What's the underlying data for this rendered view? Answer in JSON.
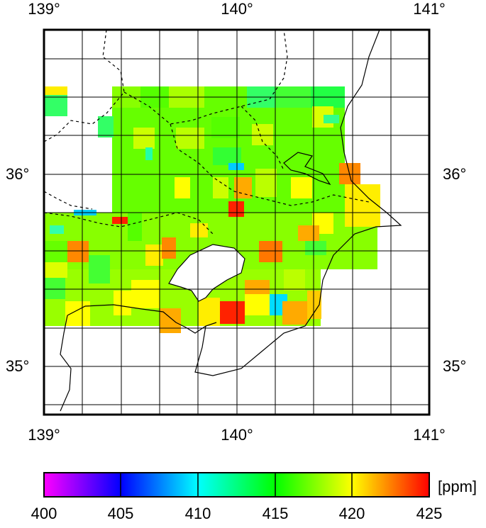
{
  "map": {
    "lon_labels": [
      "139°",
      "140°",
      "141°"
    ],
    "lat_labels": [
      "36°",
      "35°"
    ],
    "lon_range": [
      139,
      141
    ],
    "lat_range": [
      34.8,
      36.8
    ],
    "grid": true,
    "note_visible_text_only": true
  },
  "colorbar": {
    "min": 400,
    "max": 425,
    "ticks": [
      "400",
      "405",
      "410",
      "415",
      "420",
      "425"
    ],
    "unit": "[ppm]",
    "colors": [
      "#ff00ff",
      "#0000ff",
      "#00ffff",
      "#00ff00",
      "#ffff00",
      "#ff0000"
    ]
  },
  "chart_data": {
    "type": "heatmap",
    "cells_ppm_sample": [
      {
        "lon": 139.1,
        "lat": 36.45,
        "value": 414
      },
      {
        "lon": 139.05,
        "lat": 36.55,
        "value": 420
      },
      {
        "lon": 139.35,
        "lat": 36.55,
        "value": 417
      },
      {
        "lon": 139.6,
        "lat": 36.6,
        "value": 416
      },
      {
        "lon": 139.95,
        "lat": 36.6,
        "value": 414
      },
      {
        "lon": 140.3,
        "lat": 36.6,
        "value": 416
      },
      {
        "lon": 140.4,
        "lat": 36.5,
        "value": 414
      },
      {
        "lon": 139.9,
        "lat": 36.05,
        "value": 411
      },
      {
        "lon": 140.0,
        "lat": 35.9,
        "value": 421
      },
      {
        "lon": 139.95,
        "lat": 35.8,
        "value": 425
      },
      {
        "lon": 139.15,
        "lat": 35.78,
        "value": 410
      },
      {
        "lon": 139.4,
        "lat": 35.75,
        "value": 425
      },
      {
        "lon": 140.6,
        "lat": 36.0,
        "value": 422
      },
      {
        "lon": 140.65,
        "lat": 35.92,
        "value": 421
      },
      {
        "lon": 140.35,
        "lat": 35.7,
        "value": 421
      },
      {
        "lon": 140.2,
        "lat": 35.6,
        "value": 423
      },
      {
        "lon": 139.15,
        "lat": 35.6,
        "value": 422
      },
      {
        "lon": 139.65,
        "lat": 35.25,
        "value": 421
      },
      {
        "lon": 140.0,
        "lat": 35.3,
        "value": 425
      },
      {
        "lon": 140.2,
        "lat": 35.35,
        "value": 411
      },
      {
        "lon": 140.35,
        "lat": 35.3,
        "value": 421
      },
      {
        "lon": 140.1,
        "lat": 35.45,
        "value": 422
      }
    ]
  }
}
